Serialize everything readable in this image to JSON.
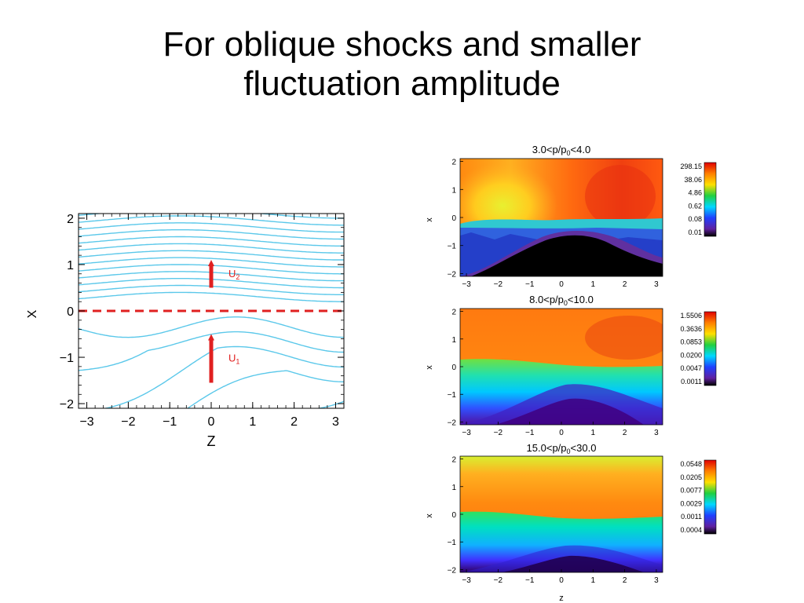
{
  "slide": {
    "title_line1": "For oblique shocks and smaller",
    "title_line2": "fluctuation amplitude"
  },
  "chart_data": [
    {
      "type": "line",
      "title": "",
      "xlabel": "Z",
      "ylabel": "X",
      "xlim": [
        -3.2,
        3.2
      ],
      "ylim": [
        -2.1,
        2.1
      ],
      "x_ticks": [
        "−3",
        "−2",
        "−1",
        "0",
        "1",
        "2",
        "3"
      ],
      "y_ticks": [
        "2",
        "1",
        "0",
        "−1",
        "−2"
      ],
      "grid": false,
      "line_color": "#5bc8ea",
      "shock_line": {
        "x": 0,
        "style": "dashed",
        "color": "#e02020"
      },
      "field_lines_upstream_offsets": [
        0.3,
        0.45,
        0.6,
        0.75,
        0.9,
        1.05,
        1.2,
        1.35,
        1.5,
        1.65,
        1.8,
        1.95,
        2.1
      ],
      "field_lines_upstream_amplitude": 0.1,
      "field_lines_downstream_offsets": [
        0.35,
        1.25,
        2.15,
        3.05,
        3.95
      ],
      "field_lines_downstream_amplitude": 0.22,
      "field_lines_downstream_slope": 0.9,
      "arrows": [
        {
          "label": "U",
          "subscript": "2",
          "z": 0,
          "x_from": 0.5,
          "x_to": 1.1,
          "color": "#e02020"
        },
        {
          "label": "U",
          "subscript": "1",
          "z": 0,
          "x_from": -1.55,
          "x_to": -0.5,
          "color": "#e02020"
        }
      ]
    },
    {
      "type": "heatmap",
      "title_prefix": "3.0<p/p",
      "title_sub": "0",
      "title_suffix": "<4.0",
      "xlabel": "",
      "ylabel": "x",
      "xlim": [
        -3.2,
        3.2
      ],
      "ylim": [
        -2.1,
        2.1
      ],
      "x_ticks": [
        "−3",
        "−2",
        "−1",
        "0",
        "1",
        "2",
        "3"
      ],
      "y_ticks": [
        "2",
        "1",
        "0",
        "−1",
        "−2"
      ],
      "colorbar_labels": [
        "298.15",
        "38.06",
        "4.86",
        "0.62",
        "0.08",
        "0.01"
      ]
    },
    {
      "type": "heatmap",
      "title_prefix": "8.0<p/p",
      "title_sub": "0",
      "title_suffix": "<10.0",
      "xlabel": "",
      "ylabel": "x",
      "xlim": [
        -3.2,
        3.2
      ],
      "ylim": [
        -2.1,
        2.1
      ],
      "x_ticks": [
        "−3",
        "−2",
        "−1",
        "0",
        "1",
        "2",
        "3"
      ],
      "y_ticks": [
        "2",
        "1",
        "0",
        "−1",
        "−2"
      ],
      "colorbar_labels": [
        "1.5506",
        "0.3636",
        "0.0853",
        "0.0200",
        "0.0047",
        "0.0011"
      ]
    },
    {
      "type": "heatmap",
      "title_prefix": "15.0<p/p",
      "title_sub": "0",
      "title_suffix": "<30.0",
      "xlabel": "z",
      "ylabel": "x",
      "xlim": [
        -3.2,
        3.2
      ],
      "ylim": [
        -2.1,
        2.1
      ],
      "x_ticks": [
        "−3",
        "−2",
        "−1",
        "0",
        "1",
        "2",
        "3"
      ],
      "y_ticks": [
        "2",
        "1",
        "0",
        "−1",
        "−2"
      ],
      "colorbar_labels": [
        "0.0548",
        "0.0205",
        "0.0077",
        "0.0029",
        "0.0011",
        "0.0004"
      ]
    }
  ]
}
